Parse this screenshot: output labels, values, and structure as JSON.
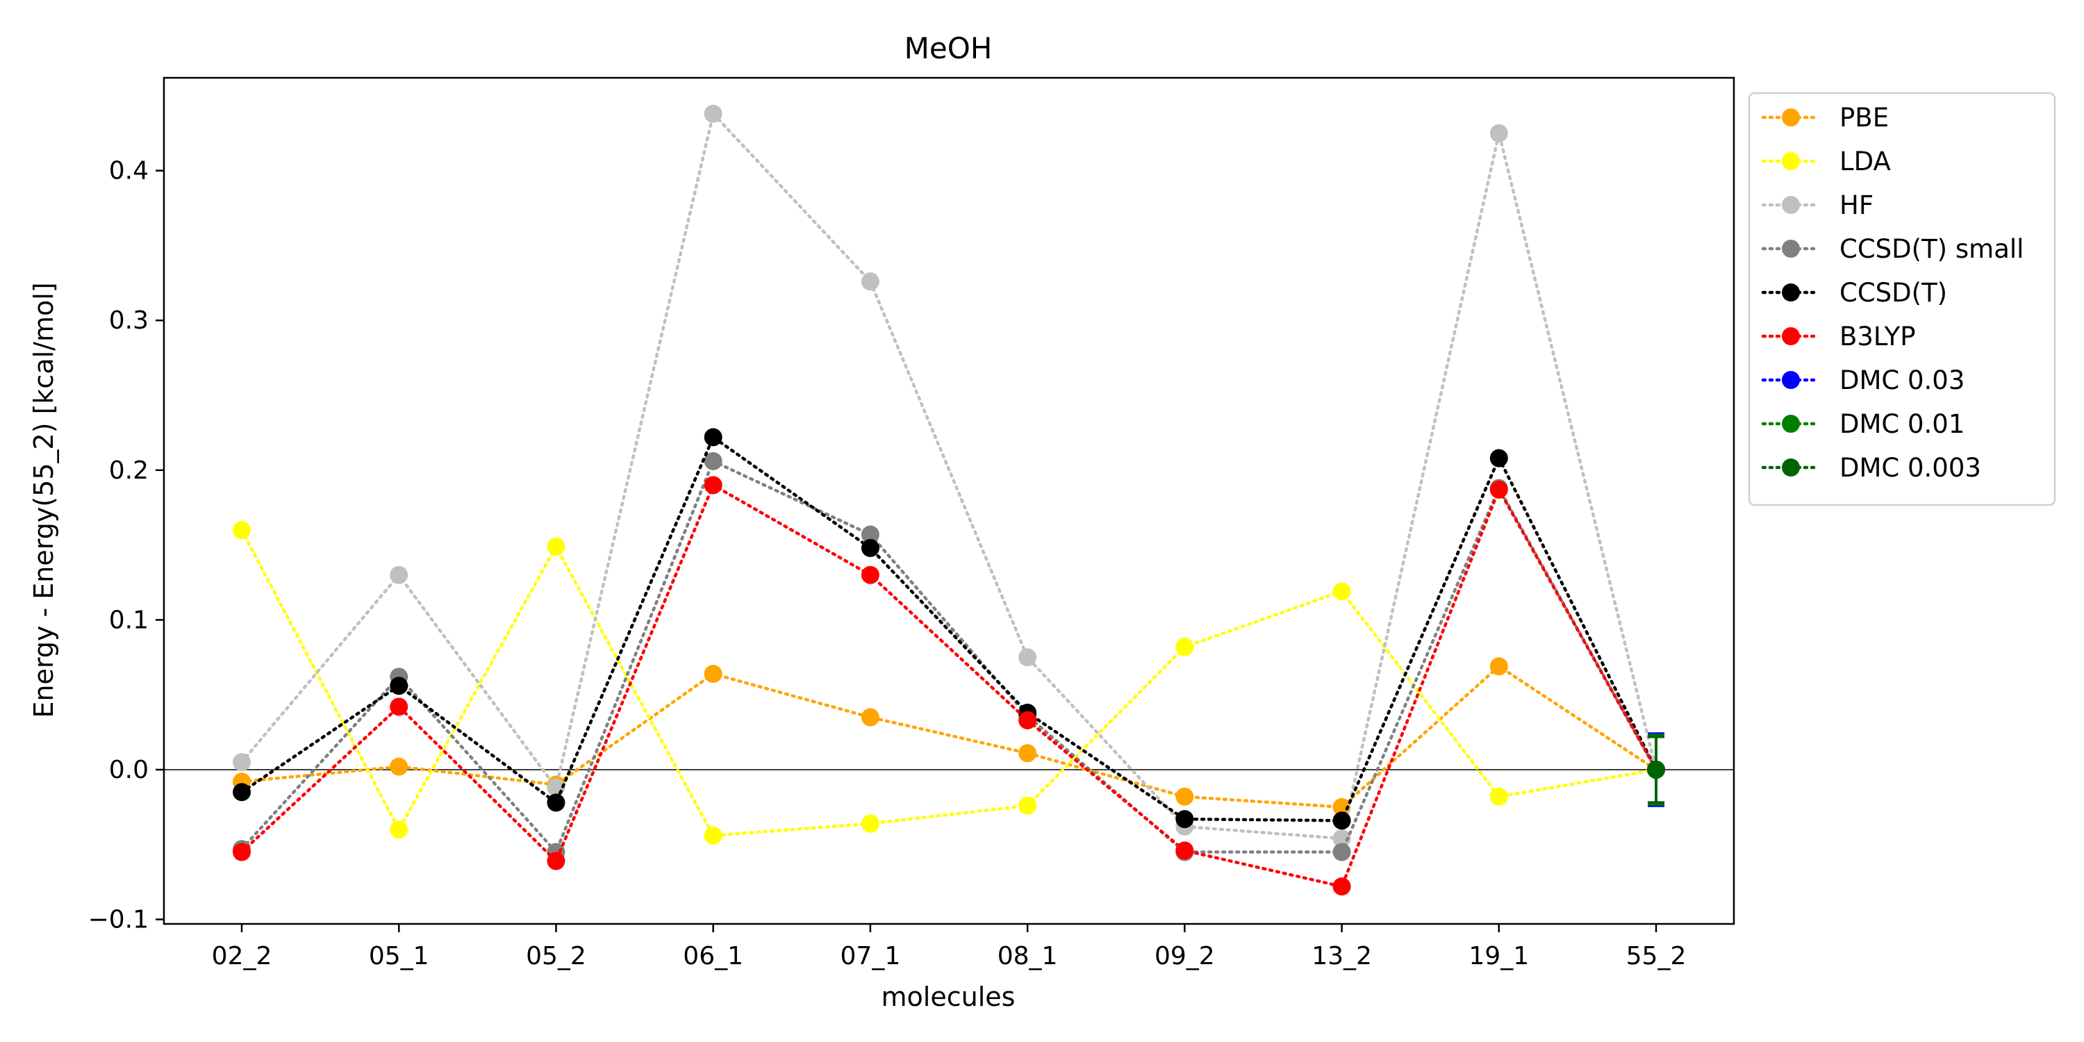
{
  "chart_data": {
    "type": "line",
    "title": "MeOH",
    "xlabel": "molecules",
    "ylabel": "Energy - Energy(55_2) [kcal/mol]",
    "categories": [
      "02_2",
      "05_1",
      "05_2",
      "06_1",
      "07_1",
      "08_1",
      "09_2",
      "13_2",
      "19_1",
      "55_2"
    ],
    "ylim": [
      -0.103,
      0.462
    ],
    "yticks": [
      -0.1,
      0.0,
      0.1,
      0.2,
      0.3,
      0.4
    ],
    "ytick_labels": [
      "−0.1",
      "0.0",
      "0.1",
      "0.2",
      "0.3",
      "0.4"
    ],
    "zero_line": true,
    "grid": false,
    "legend_position": "outside-top-right",
    "series": [
      {
        "name": "PBE",
        "color": "#FFA500",
        "values": [
          -0.008,
          0.002,
          -0.01,
          0.064,
          0.035,
          0.011,
          -0.018,
          -0.025,
          0.069,
          0.0
        ]
      },
      {
        "name": "LDA",
        "color": "#FFFF00",
        "values": [
          0.16,
          -0.04,
          0.149,
          -0.044,
          -0.036,
          -0.024,
          0.082,
          0.119,
          -0.018,
          0.0
        ]
      },
      {
        "name": "HF",
        "color": "#C0C0C0",
        "values": [
          0.005,
          0.13,
          -0.012,
          0.438,
          0.326,
          0.075,
          -0.038,
          -0.046,
          0.425,
          0.0
        ]
      },
      {
        "name": "CCSD(T) small",
        "color": "#808080",
        "values": [
          -0.053,
          0.062,
          -0.055,
          0.206,
          0.157,
          0.036,
          -0.055,
          -0.055,
          0.188,
          0.0
        ]
      },
      {
        "name": "CCSD(T)",
        "color": "#000000",
        "values": [
          -0.015,
          0.056,
          -0.022,
          0.222,
          0.148,
          0.038,
          -0.033,
          -0.034,
          0.208,
          0.0
        ]
      },
      {
        "name": "B3LYP",
        "color": "#FF0000",
        "values": [
          -0.055,
          0.042,
          -0.061,
          0.19,
          0.13,
          0.033,
          -0.054,
          -0.078,
          0.187,
          0.0
        ]
      },
      {
        "name": "DMC 0.03",
        "color": "#0000FF",
        "values": [
          null,
          null,
          null,
          null,
          null,
          null,
          null,
          null,
          null,
          0.0
        ],
        "error": [
          null,
          null,
          null,
          null,
          null,
          null,
          null,
          null,
          null,
          0.024
        ]
      },
      {
        "name": "DMC 0.01",
        "color": "#008000",
        "values": [
          null,
          null,
          null,
          null,
          null,
          null,
          null,
          null,
          null,
          0.0
        ],
        "error": [
          null,
          null,
          null,
          null,
          null,
          null,
          null,
          null,
          null,
          0.023
        ]
      },
      {
        "name": "DMC 0.003",
        "color": "#006400",
        "values": [
          null,
          null,
          null,
          null,
          null,
          null,
          null,
          null,
          null,
          0.0
        ],
        "error": [
          null,
          null,
          null,
          null,
          null,
          null,
          null,
          null,
          null,
          0.022
        ]
      }
    ]
  }
}
